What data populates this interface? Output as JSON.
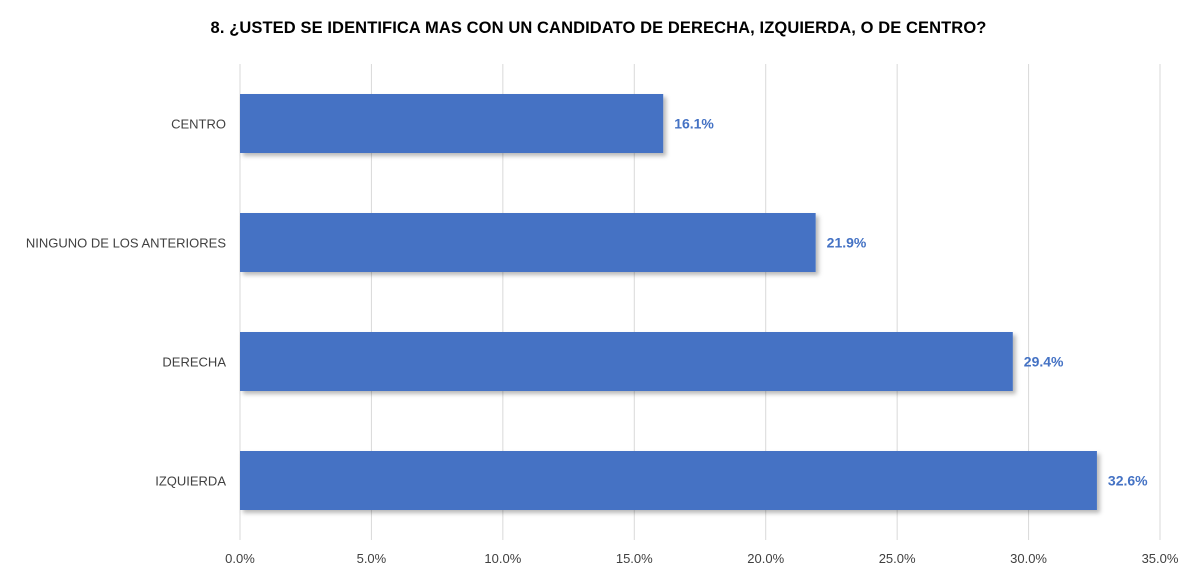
{
  "chart_data": {
    "type": "bar",
    "orientation": "horizontal",
    "title": "8. ¿USTED SE IDENTIFICA MAS CON UN CANDIDATO DE DERECHA, IZQUIERDA, O DE CENTRO?",
    "categories": [
      "CENTRO",
      "NINGUNO DE LOS ANTERIORES",
      "DERECHA",
      "IZQUIERDA"
    ],
    "values": [
      16.1,
      21.9,
      29.4,
      32.6
    ],
    "data_labels": [
      "16.1%",
      "21.9%",
      "29.4%",
      "32.6%"
    ],
    "xlim": [
      0,
      35
    ],
    "x_ticks": [
      0,
      5,
      10,
      15,
      20,
      25,
      30,
      35
    ],
    "x_tick_labels": [
      "0.0%",
      "5.0%",
      "10.0%",
      "15.0%",
      "20.0%",
      "25.0%",
      "30.0%",
      "35.0%"
    ],
    "grid": true,
    "legend": "none",
    "colors": {
      "bar": "#4472C4",
      "data_label": "#4472C4",
      "grid": "#D9D9D9",
      "axis_text": "#404040"
    }
  }
}
